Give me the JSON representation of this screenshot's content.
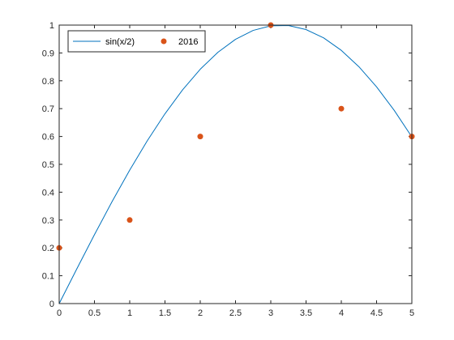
{
  "chart_data": {
    "type": "line",
    "title": "",
    "xlabel": "",
    "ylabel": "",
    "xlim": [
      0,
      5
    ],
    "ylim": [
      0,
      1
    ],
    "x_ticks": [
      0,
      0.5,
      1,
      1.5,
      2,
      2.5,
      3,
      3.5,
      4,
      4.5,
      5
    ],
    "x_tick_labels": [
      "0",
      "0.5",
      "1",
      "1.5",
      "2",
      "2.5",
      "3",
      "3.5",
      "4",
      "4.5",
      "5"
    ],
    "y_ticks": [
      0,
      0.1,
      0.2,
      0.3,
      0.4,
      0.5,
      0.6,
      0.7,
      0.8,
      0.9,
      1
    ],
    "y_tick_labels": [
      "0",
      "0.1",
      "0.2",
      "0.3",
      "0.4",
      "0.5",
      "0.6",
      "0.7",
      "0.8",
      "0.9",
      "1"
    ],
    "grid": false,
    "legend_position": "top-left",
    "series": [
      {
        "name": "sin(x/2)",
        "type": "line",
        "color": "#0072BD",
        "x": [
          0,
          0.25,
          0.5,
          0.75,
          1,
          1.25,
          1.5,
          1.75,
          2,
          2.25,
          2.5,
          2.75,
          3,
          3.25,
          3.5,
          3.75,
          4,
          4.25,
          4.5,
          4.75,
          5
        ],
        "y": [
          0,
          0.1247,
          0.2474,
          0.3663,
          0.4794,
          0.5851,
          0.6816,
          0.7675,
          0.8415,
          0.9023,
          0.949,
          0.9809,
          0.9975,
          0.9985,
          0.984,
          0.954,
          0.9093,
          0.8504,
          0.7781,
          0.6939,
          0.5985
        ]
      },
      {
        "name": "2016",
        "type": "scatter",
        "color": "#D95319",
        "x": [
          0,
          1,
          2,
          3,
          4,
          5
        ],
        "y": [
          0.2,
          0.3,
          0.6,
          1.0,
          0.7,
          0.6
        ]
      }
    ]
  }
}
